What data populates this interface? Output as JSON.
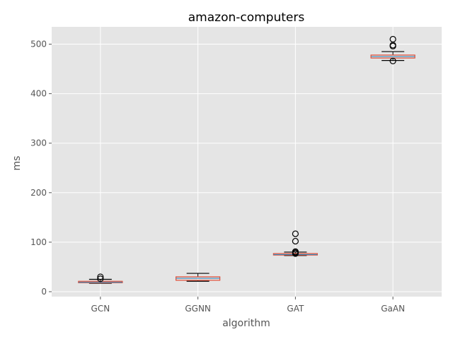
{
  "chart_data": {
    "type": "box",
    "title": "amazon-computers",
    "xlabel": "algorithm",
    "ylabel": "ms",
    "ylim": [
      -10,
      535
    ],
    "yticks": [
      0,
      100,
      200,
      300,
      400,
      500
    ],
    "grid": true,
    "categories": [
      "GCN",
      "GGNN",
      "GAT",
      "GaAN"
    ],
    "boxes": [
      {
        "category": "GCN",
        "whisker_low": 17,
        "q1": 18,
        "median": 19,
        "q3": 21,
        "whisker_high": 25,
        "outliers": [
          26,
          30
        ]
      },
      {
        "category": "GGNN",
        "whisker_low": 21,
        "q1": 23,
        "median": 27,
        "q3": 30,
        "whisker_high": 37,
        "outliers": []
      },
      {
        "category": "GAT",
        "whisker_low": 73,
        "q1": 74,
        "median": 75,
        "q3": 77,
        "whisker_high": 80,
        "outliers": [
          77,
          79,
          81,
          102,
          117
        ]
      },
      {
        "category": "GaAN",
        "whisker_low": 467,
        "q1": 472,
        "median": 475,
        "q3": 478,
        "whisker_high": 485,
        "outliers": [
          466,
          496,
          498,
          510
        ]
      }
    ],
    "colors": {
      "background": "#e5e5e5",
      "grid": "#ffffff",
      "box": "#e24a33",
      "median": "#348abd",
      "whisker": "#000000",
      "flier": "#000000"
    }
  }
}
